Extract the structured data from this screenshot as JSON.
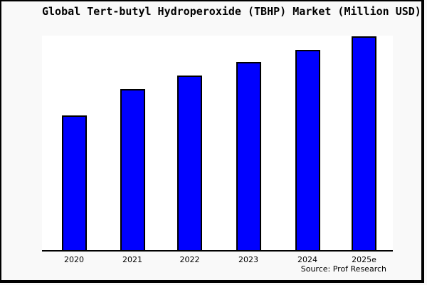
{
  "chart_data": {
    "type": "bar",
    "title": "Global Tert-butyl Hydroperoxide (TBHP) Market (Million USD)",
    "categories": [
      "2020",
      "2021",
      "2022",
      "2023",
      "2024",
      "2025e"
    ],
    "values": [
      62.8,
      75.1,
      81.4,
      87.7,
      93.4,
      99.7
    ],
    "series_note": "single series; no y-axis tick labels shown, values are relative bar heights in percent of plot height",
    "xlabel": "",
    "ylabel": "",
    "ylim": [
      0,
      100
    ],
    "grid": false,
    "legend": "none",
    "source_note": "Source: Prof Research"
  },
  "colors": {
    "bar_fill": "#0000ff",
    "bar_border": "#000000",
    "plot_background": "#ffffff",
    "canvas_background": "#f9f9f9",
    "frame_border": "#000000",
    "text": "#000000"
  }
}
